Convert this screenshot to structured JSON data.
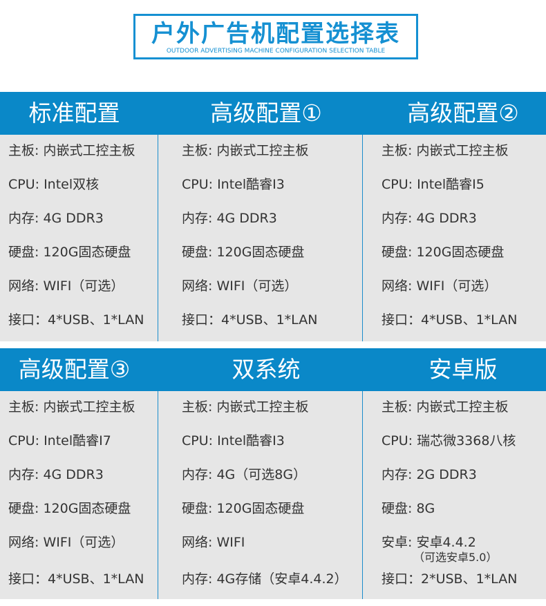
{
  "title": "户外广告机配置选择表",
  "subtitle": "OUTDOOR ADVERTISING MACHINE CONFIGURATION SELECTION TABLE",
  "colors": {
    "accent": "#0a88c8",
    "body": "#e6e6e6"
  },
  "configs": [
    {
      "name": "标准配置",
      "rows": [
        "主板: 内嵌式工控主板",
        "CPU: Intel双核",
        "内存: 4G DDR3",
        "硬盘: 120G固态硬盘",
        "网络: WIFI（可选）",
        "接口：4*USB、1*LAN"
      ]
    },
    {
      "name": "高级配置①",
      "rows": [
        "主板: 内嵌式工控主板",
        "CPU: Intel酷睿I3",
        "内存: 4G DDR3",
        "硬盘: 120G固态硬盘",
        "网络: WIFI（可选）",
        "接口：4*USB、1*LAN"
      ]
    },
    {
      "name": "高级配置②",
      "rows": [
        "主板: 内嵌式工控主板",
        "CPU: Intel酷睿I5",
        "内存: 4G DDR3",
        "硬盘: 120G固态硬盘",
        "网络: WIFI（可选）",
        "接口：4*USB、1*LAN"
      ]
    },
    {
      "name": "高级配置③",
      "rows": [
        "主板: 内嵌式工控主板",
        "CPU: Intel酷睿I7",
        "内存: 4G DDR3",
        "硬盘: 120G固态硬盘",
        "网络: WIFI（可选）",
        "接口：4*USB、1*LAN"
      ]
    },
    {
      "name": "双系统",
      "rows": [
        "主板: 内嵌式工控主板",
        "CPU: Intel酷睿I3",
        "内存: 4G（可选8G）",
        "硬盘: 120G固态硬盘",
        "网络: WIFI",
        "内存: 4G存储（安卓4.4.2）"
      ]
    },
    {
      "name": "安卓版",
      "rows": [
        "主板: 内嵌式工控主板",
        "CPU: 瑞芯微3368八核",
        "内存: 2G DDR3",
        "硬盘: 8G",
        "安卓: 安卓4.4.2",
        "接口：2*USB、1*LAN"
      ],
      "note": "（可选安卓5.0）"
    }
  ]
}
